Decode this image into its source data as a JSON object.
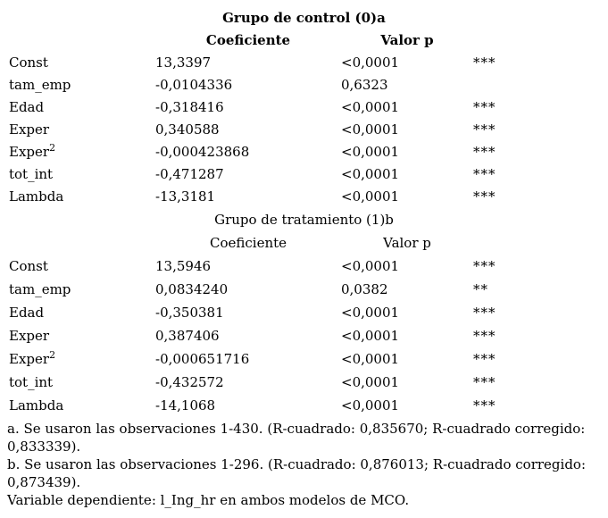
{
  "colors": {
    "text": "#000000",
    "background": "#ffffff"
  },
  "table": {
    "groups": [
      {
        "title": "Grupo de control (0)a",
        "headers": {
          "coef": "Coeficiente",
          "pval": "Valor p"
        },
        "rows": [
          {
            "var": "Const",
            "coef": "13,3397",
            "pval": "<0,0001",
            "stars": "***"
          },
          {
            "var": "tam_emp",
            "coef": "-0,0104336",
            "pval": "0,6323",
            "stars": ""
          },
          {
            "var": "Edad",
            "coef": "-0,318416",
            "pval": "<0,0001",
            "stars": "***"
          },
          {
            "var": "Exper",
            "coef": "0,340588",
            "pval": "<0,0001",
            "stars": "***"
          },
          {
            "var": "Exper",
            "sup": "2",
            "coef": "-0,000423868",
            "pval": "<0,0001",
            "stars": "***"
          },
          {
            "var": "tot_int",
            "coef": "-0,471287",
            "pval": "<0,0001",
            "stars": "***"
          },
          {
            "var": "Lambda",
            "coef": "-13,3181",
            "pval": "<0,0001",
            "stars": "***"
          }
        ]
      },
      {
        "title": "Grupo de tratamiento (1)b",
        "headers": {
          "coef": "Coeficiente",
          "pval": "Valor p"
        },
        "rows": [
          {
            "var": "Const",
            "coef": "13,5946",
            "pval": "<0,0001",
            "stars": "***"
          },
          {
            "var": "tam_emp",
            "coef": "0,0834240",
            "pval": "0,0382",
            "stars": "**"
          },
          {
            "var": "Edad",
            "coef": "-0,350381",
            "pval": "<0,0001",
            "stars": "***"
          },
          {
            "var": "Exper",
            "coef": "0,387406",
            "pval": "<0,0001",
            "stars": "***"
          },
          {
            "var": "Exper",
            "sup": "2",
            "coef": "-0,000651716",
            "pval": "<0,0001",
            "stars": "***"
          },
          {
            "var": "tot_int",
            "coef": "-0,432572",
            "pval": "<0,0001",
            "stars": "***"
          },
          {
            "var": "Lambda",
            "coef": "-14,1068",
            "pval": "<0,0001",
            "stars": "***"
          }
        ]
      }
    ],
    "footnotes": [
      "a. Se usaron las observaciones 1-430. (R-cuadrado: 0,835670; R-cuadrado corregido: 0,833339).",
      "b. Se usaron las observaciones 1-296. (R-cuadrado: 0,876013; R-cuadrado corregido: 0,873439).",
      "Variable dependiente: l_Ing_hr en ambos modelos de MCO."
    ]
  }
}
